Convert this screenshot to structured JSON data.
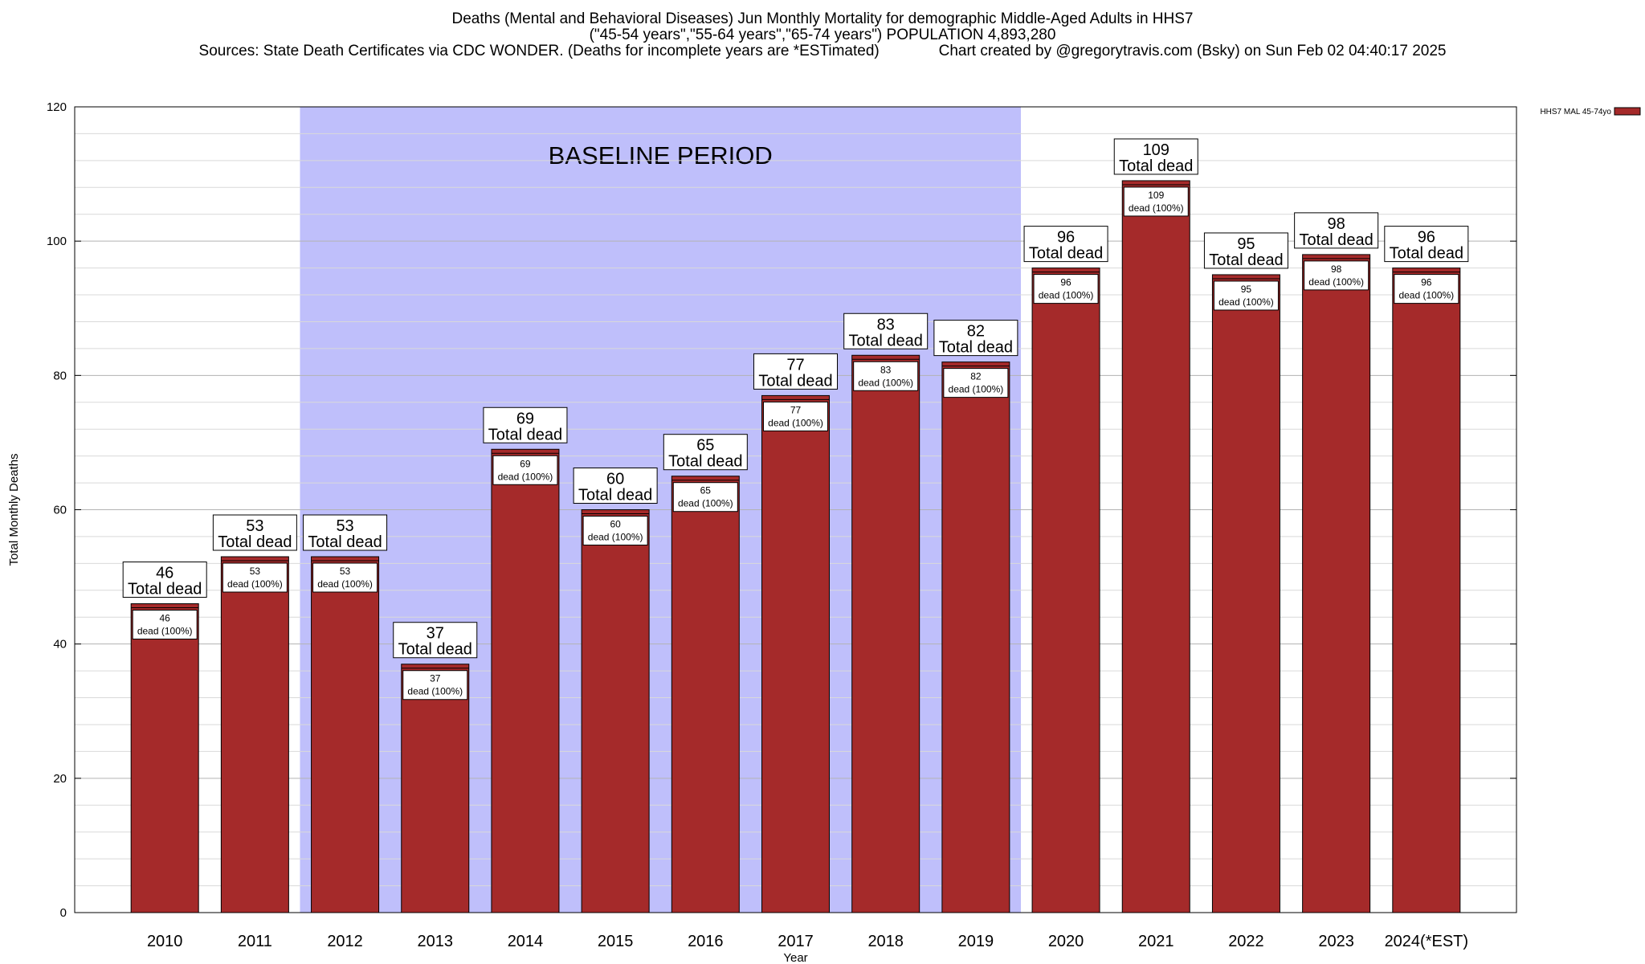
{
  "titles": {
    "line1": "Deaths (Mental and Behavioral Diseases) Jun Monthly Mortality for demographic Middle-Aged Adults in HHS7",
    "line2": "(\"45-54 years\",\"55-64 years\",\"65-74 years\") POPULATION 4,893,280",
    "sources": "Sources: State Death Certificates via CDC WONDER. (Deaths for incomplete years are *ESTimated)",
    "credit": "Chart created by @gregorytravis.com (Bsky) on Sun Feb 02 04:40:17 2025"
  },
  "chart_data": {
    "type": "bar",
    "xlabel": "Year",
    "ylabel": "Total Monthly Deaths",
    "ylim": [
      0,
      120
    ],
    "yticks": [
      0,
      20,
      40,
      60,
      80,
      100,
      120
    ],
    "categories": [
      "2010",
      "2011",
      "2012",
      "2013",
      "2014",
      "2015",
      "2016",
      "2017",
      "2018",
      "2019",
      "2020",
      "2021",
      "2022",
      "2023",
      "2024(*EST)"
    ],
    "series": [
      {
        "name": "HHS7 MAL 45-74yo",
        "color": "#a52a2a",
        "values": [
          46,
          53,
          53,
          37,
          69,
          60,
          65,
          77,
          83,
          82,
          96,
          109,
          95,
          98,
          96
        ]
      }
    ],
    "top_label_suffix": "Total dead",
    "inner_label_suffix": "dead (100%)",
    "baseline": {
      "label": "BASELINE PERIOD",
      "from": "2012",
      "to": "2019",
      "color": "#bfbffb"
    },
    "legend_placement": "top-right",
    "grid": true
  }
}
